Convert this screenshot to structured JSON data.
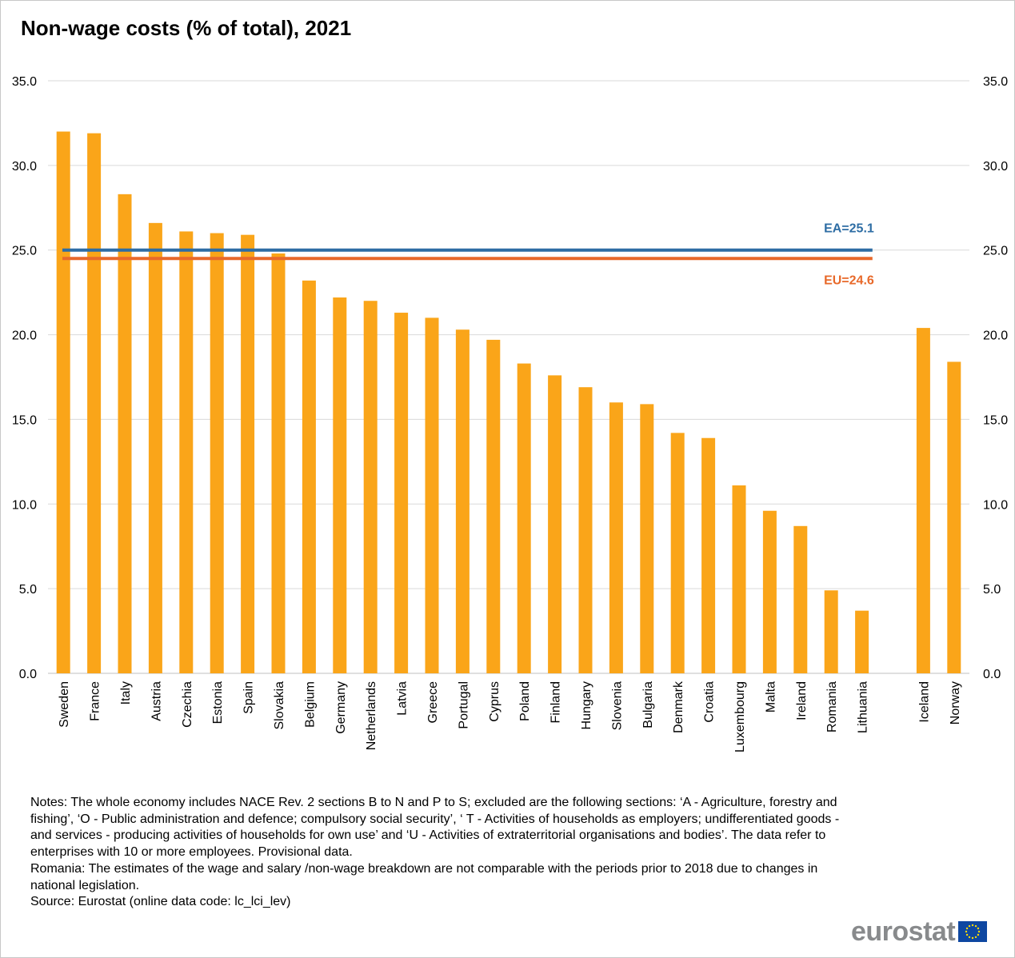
{
  "chart_data": {
    "type": "bar",
    "title": "Non-wage costs (% of total), 2021",
    "xlabel": "",
    "ylabel": "",
    "ylim": [
      0,
      35
    ],
    "yticks": [
      "0.0",
      "5.0",
      "10.0",
      "15.0",
      "20.0",
      "25.0",
      "30.0",
      "35.0"
    ],
    "grid": true,
    "bar_color": "#faa519",
    "categories": [
      "Sweden",
      "France",
      "Italy",
      "Austria",
      "Czechia",
      "Estonia",
      "Spain",
      "Slovakia",
      "Belgium",
      "Germany",
      "Netherlands",
      "Latvia",
      "Greece",
      "Portugal",
      "Cyprus",
      "Poland",
      "Finland",
      "Hungary",
      "Slovenia",
      "Bulgaria",
      "Denmark",
      "Croatia",
      "Luxembourg",
      "Malta",
      "Ireland",
      "Romania",
      "Lithuania",
      "",
      "Iceland",
      "Norway"
    ],
    "values": [
      32.0,
      31.9,
      28.3,
      26.6,
      26.1,
      26.0,
      25.9,
      24.8,
      23.2,
      22.2,
      22.0,
      21.3,
      21.0,
      20.3,
      19.7,
      18.3,
      17.6,
      16.9,
      16.0,
      15.9,
      14.2,
      13.9,
      11.1,
      9.6,
      8.7,
      4.9,
      3.7,
      null,
      20.4,
      18.4
    ],
    "reference_lines": [
      {
        "name": "EA",
        "value": 25.1,
        "label": "EA=25.1",
        "color": "#2e6da4"
      },
      {
        "name": "EU",
        "value": 24.6,
        "label": "EU=24.6",
        "color": "#e8692a"
      }
    ]
  },
  "notes": {
    "text": "Notes: The whole economy includes NACE Rev. 2 sections B to N and P to S; excluded are the following sections: ‘A - Agriculture, forestry and fishing’, ‘O - Public administration and defence; compulsory social security’, ‘ T - Activities of households as employers; undifferentiated goods - and services - producing activities of households for own use’ and ‘U - Activities of extraterritorial organisations and bodies’. The data refer to enterprises with 10 or more employees. Provisional data.",
    "romania": "Romania: The estimates of the wage and salary /non-wage breakdown are not comparable with the periods prior to 2018 due to changes in national legislation.",
    "source": "Source: Eurostat (online data code: lc_lci_lev)"
  },
  "logo": {
    "text": "eurostat",
    "flag_color": "#0e47a1",
    "star_color": "#ffdd00"
  }
}
